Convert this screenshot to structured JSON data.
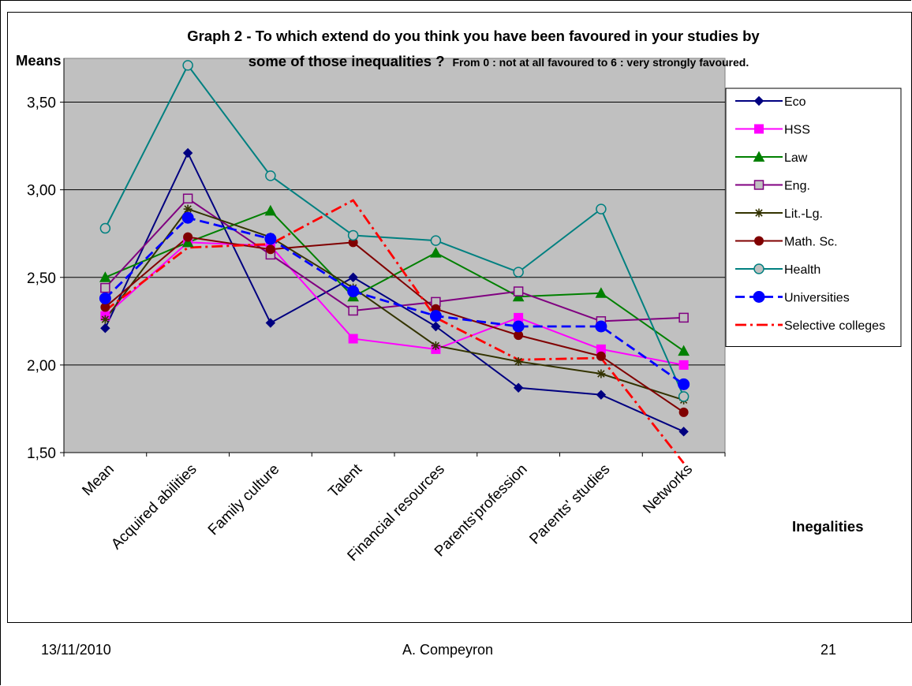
{
  "chart_data": {
    "type": "line",
    "title_line1": "Graph 2 -  To which extend do you think you have been favoured in your studies by",
    "title_line2": "some of those inequalities ?",
    "subtitle": "From 0 : not at all favoured to 6 : very strongly favoured.",
    "ylabel": "Means",
    "xlabel": "Inegalities",
    "ylim": [
      1.5,
      3.75
    ],
    "yticks": [
      "1,50",
      "2,00",
      "2,50",
      "3,00",
      "3,50"
    ],
    "ytick_values": [
      1.5,
      2.0,
      2.5,
      3.0,
      3.5
    ],
    "grid": true,
    "plot_background": "#c0c0c0",
    "legend_position": "right",
    "categories": [
      "Mean",
      "Acquired abilities",
      "Family culture",
      "Talent",
      "Financial resources",
      "Parents'profession",
      "Parents' studies",
      "Networks"
    ],
    "series": [
      {
        "name": "Eco",
        "color": "#000080",
        "marker": "diamond",
        "dash": "solid",
        "values": [
          2.21,
          3.21,
          2.24,
          2.5,
          2.22,
          1.87,
          1.83,
          1.62
        ]
      },
      {
        "name": "HSS",
        "color": "#ff00ff",
        "marker": "square",
        "dash": "solid",
        "values": [
          2.28,
          2.7,
          2.68,
          2.15,
          2.09,
          2.27,
          2.09,
          2.0
        ]
      },
      {
        "name": "Law",
        "color": "#008000",
        "marker": "triangle",
        "dash": "solid",
        "values": [
          2.5,
          2.7,
          2.88,
          2.39,
          2.64,
          2.39,
          2.41,
          2.08
        ]
      },
      {
        "name": "Eng.",
        "color": "#800080",
        "marker": "open-square",
        "dash": "solid",
        "values": [
          2.44,
          2.95,
          2.63,
          2.31,
          2.36,
          2.42,
          2.25,
          2.27
        ]
      },
      {
        "name": "Lit.-Lg.",
        "color": "#333300",
        "marker": "star",
        "dash": "solid",
        "values": [
          2.26,
          2.89,
          2.73,
          2.44,
          2.11,
          2.02,
          1.95,
          1.8
        ]
      },
      {
        "name": "Math. Sc.",
        "color": "#800000",
        "marker": "circle",
        "dash": "solid",
        "values": [
          2.33,
          2.73,
          2.66,
          2.7,
          2.32,
          2.17,
          2.05,
          1.73
        ]
      },
      {
        "name": "Health",
        "color": "#008080",
        "marker": "open-circle",
        "dash": "solid",
        "values": [
          2.78,
          3.71,
          3.08,
          2.74,
          2.71,
          2.53,
          2.89,
          1.82
        ]
      },
      {
        "name": "Universities",
        "color": "#0000ff",
        "marker": "filled-circle",
        "dash": "dashed",
        "values": [
          2.38,
          2.84,
          2.72,
          2.42,
          2.28,
          2.22,
          2.22,
          1.89
        ]
      },
      {
        "name": "Selective colleges",
        "color": "#ff0000",
        "marker": "none",
        "dash": "dashdot",
        "values": [
          2.31,
          2.67,
          2.69,
          2.94,
          2.27,
          2.03,
          2.04,
          1.44
        ]
      }
    ]
  },
  "footer": {
    "date": "13/11/2010",
    "author": "A. Compeyron",
    "page": "21"
  }
}
